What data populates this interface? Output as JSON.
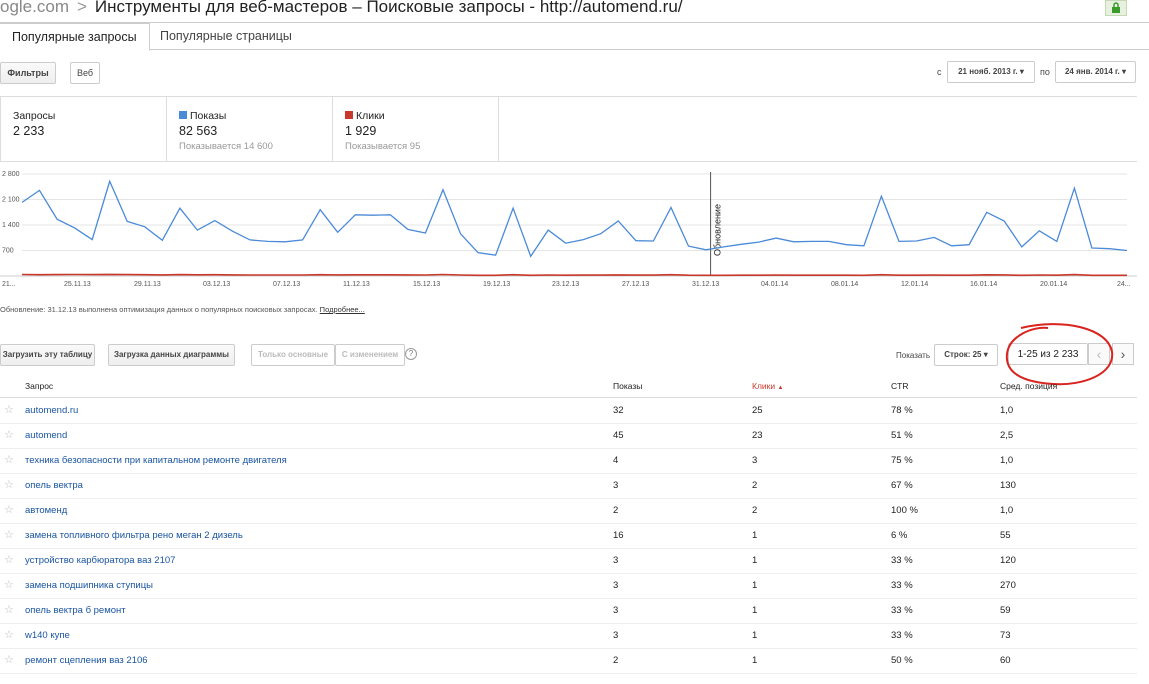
{
  "browser": {
    "url_fragment": "ogle.com",
    "separator": ">",
    "title": "Инструменты для веб-мастеров – Поисковые запросы - http://automend.ru/"
  },
  "tabs": [
    {
      "label": "Популярные запросы",
      "active": true
    },
    {
      "label": "Популярные страницы",
      "active": false
    }
  ],
  "toolbar": {
    "filters_label": "Фильтры",
    "web_label": "Веб",
    "from_label": "с",
    "from_date": "21 нояб. 2013 г.",
    "to_label": "по",
    "to_date": "24 янв. 2014 г."
  },
  "summary": {
    "queries": {
      "label": "Запросы",
      "value": "2 233"
    },
    "impressions": {
      "label": "Показы",
      "value": "82 563",
      "sub": "Показывается 14 600",
      "color": "#4a8ad8"
    },
    "clicks": {
      "label": "Клики",
      "value": "1 929",
      "sub": "Показывается 95",
      "color": "#c8392b"
    }
  },
  "chart_data": {
    "type": "line",
    "y_ticks": [
      "2 800",
      "2 100",
      "1 400",
      "700"
    ],
    "ylim": [
      0,
      2800
    ],
    "x_ticks": [
      "21...",
      "25.11.13",
      "29.11.13",
      "03.12.13",
      "07.12.13",
      "11.12.13",
      "15.12.13",
      "19.12.13",
      "23.12.13",
      "27.12.13",
      "31.12.13",
      "04.01.14",
      "08.01.14",
      "12.01.14",
      "16.01.14",
      "20.01.14",
      "24..."
    ],
    "annotation": "Обновление",
    "annotation_index": 40,
    "series": [
      {
        "name": "Показы",
        "color": "#4a8ad8",
        "values": [
          2020,
          2350,
          1560,
          1320,
          1000,
          2600,
          1500,
          1350,
          980,
          1860,
          1260,
          1520,
          1230,
          990,
          950,
          940,
          990,
          1820,
          1200,
          1680,
          1670,
          1680,
          1280,
          1180,
          2370,
          1160,
          640,
          570,
          1860,
          540,
          1260,
          900,
          1000,
          1160,
          1510,
          970,
          960,
          1880,
          820,
          720,
          800,
          870,
          930,
          1040,
          940,
          950,
          950,
          860,
          830,
          2190,
          950,
          960,
          1060,
          830,
          860,
          1750,
          1510,
          800,
          1240,
          950,
          2410,
          770,
          750,
          700
        ]
      },
      {
        "name": "Клики",
        "color": "#c8392b",
        "values": [
          40,
          35,
          38,
          40,
          38,
          45,
          38,
          35,
          30,
          38,
          34,
          37,
          30,
          28,
          27,
          27,
          27,
          35,
          30,
          34,
          33,
          33,
          30,
          28,
          40,
          28,
          20,
          18,
          36,
          18,
          28,
          22,
          24,
          26,
          30,
          24,
          24,
          35,
          21,
          19,
          20,
          22,
          23,
          25,
          23,
          23,
          23,
          21,
          20,
          36,
          23,
          23,
          25,
          21,
          21,
          32,
          30,
          20,
          27,
          23,
          38,
          20,
          19,
          18
        ]
      }
    ]
  },
  "note": {
    "text": "Обновление: 31.12.13 выполнена оптимизация данных о популярных поисковых запросах.",
    "link": "Подробнее..."
  },
  "table_toolbar": {
    "download_table": "Загрузить эту таблицу",
    "download_chart": "Загрузка данных диаграммы",
    "only_main": "Только основные",
    "with_changes": "С изменением",
    "help": "?",
    "show_label": "Показать",
    "rows_select": "Строк: 25",
    "pager": "1-25 из 2 233"
  },
  "table": {
    "headers": [
      "Запрос",
      "Показы",
      "Клики",
      "CTR",
      "Сред. позиция"
    ],
    "sort_color": "#c8392b",
    "rows": [
      [
        "automend.ru",
        "32",
        "25",
        "78 %",
        "1,0"
      ],
      [
        "automend",
        "45",
        "23",
        "51 %",
        "2,5"
      ],
      [
        "техника безопасности при капитальном ремонте двигателя",
        "4",
        "3",
        "75 %",
        "1,0"
      ],
      [
        "опель вектра",
        "3",
        "2",
        "67 %",
        "130"
      ],
      [
        "автоменд",
        "2",
        "2",
        "100 %",
        "1,0"
      ],
      [
        "замена топливного фильтра рено меган 2 дизель",
        "16",
        "1",
        "6 %",
        "55"
      ],
      [
        "устройство карбюратора ваз 2107",
        "3",
        "1",
        "33 %",
        "120"
      ],
      [
        "замена подшипника ступицы",
        "3",
        "1",
        "33 %",
        "270"
      ],
      [
        "опель вектра б ремонт",
        "3",
        "1",
        "33 %",
        "59"
      ],
      [
        "w140 купе",
        "3",
        "1",
        "33 %",
        "73"
      ],
      [
        "ремонт сцепления ваз 2106",
        "2",
        "1",
        "50 %",
        "60"
      ]
    ]
  }
}
